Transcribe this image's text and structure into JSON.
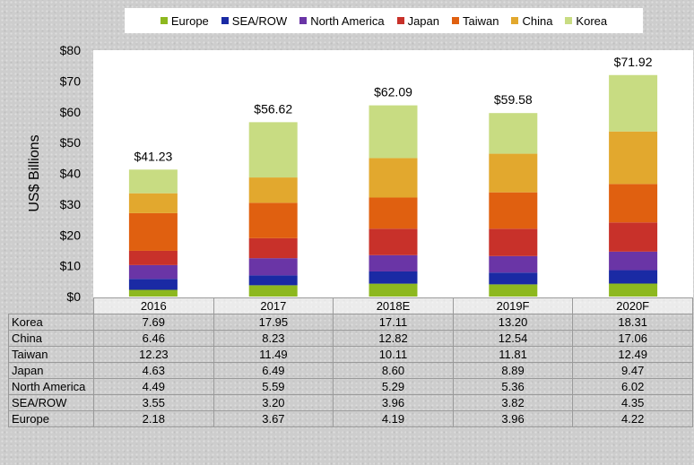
{
  "chart_data": {
    "type": "bar",
    "stacked": true,
    "ylabel": "US$ Billions",
    "ylim": [
      0,
      80
    ],
    "yticks": [
      "$0",
      "$10",
      "$20",
      "$30",
      "$40",
      "$50",
      "$60",
      "$70",
      "$80"
    ],
    "categories": [
      "2016",
      "2017",
      "2018E",
      "2019F",
      "2020F"
    ],
    "totals": [
      "$41.23",
      "$56.62",
      "$62.09",
      "$59.58",
      "$71.92"
    ],
    "legend_position": "top",
    "grid": false,
    "series": [
      {
        "name": "Europe",
        "color": "#8db81f",
        "values": [
          2.18,
          3.67,
          4.19,
          3.96,
          4.22
        ]
      },
      {
        "name": "SEA/ROW",
        "color": "#1a2aa4",
        "values": [
          3.55,
          3.2,
          3.96,
          3.82,
          4.35
        ]
      },
      {
        "name": "North America",
        "color": "#6a35a6",
        "values": [
          4.49,
          5.59,
          5.29,
          5.36,
          6.02
        ]
      },
      {
        "name": "Japan",
        "color": "#c8312a",
        "values": [
          4.63,
          6.49,
          8.6,
          8.89,
          9.47
        ]
      },
      {
        "name": "Taiwan",
        "color": "#e06010",
        "values": [
          12.23,
          11.49,
          10.11,
          11.81,
          12.49
        ]
      },
      {
        "name": "China",
        "color": "#e2a82e",
        "values": [
          6.46,
          8.23,
          12.82,
          12.54,
          17.06
        ]
      },
      {
        "name": "Korea",
        "color": "#c8dc82",
        "values": [
          7.69,
          17.95,
          17.11,
          13.2,
          18.31
        ]
      }
    ],
    "table": {
      "rows": [
        {
          "label": "Korea",
          "cells": [
            "7.69",
            "17.95",
            "17.11",
            "13.20",
            "18.31"
          ]
        },
        {
          "label": "China",
          "cells": [
            "6.46",
            "8.23",
            "12.82",
            "12.54",
            "17.06"
          ]
        },
        {
          "label": "Taiwan",
          "cells": [
            "12.23",
            "11.49",
            "10.11",
            "11.81",
            "12.49"
          ]
        },
        {
          "label": "Japan",
          "cells": [
            "4.63",
            "6.49",
            "8.60",
            "8.89",
            "9.47"
          ]
        },
        {
          "label": "North America",
          "cells": [
            "4.49",
            "5.59",
            "5.29",
            "5.36",
            "6.02"
          ]
        },
        {
          "label": "SEA/ROW",
          "cells": [
            "3.55",
            "3.20",
            "3.96",
            "3.82",
            "4.35"
          ]
        },
        {
          "label": "Europe",
          "cells": [
            "2.18",
            "3.67",
            "4.19",
            "3.96",
            "4.22"
          ]
        }
      ]
    }
  }
}
